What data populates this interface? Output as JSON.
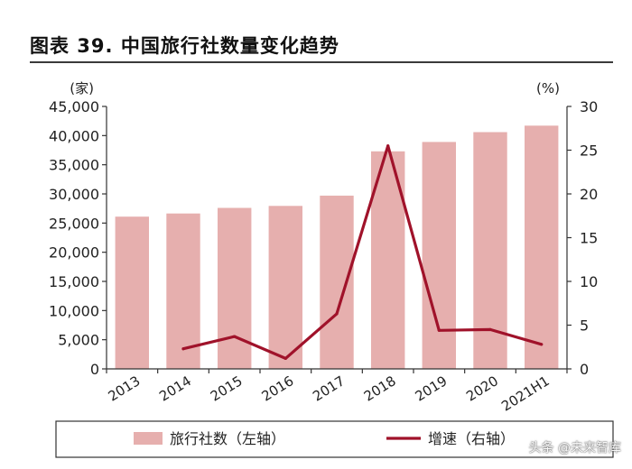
{
  "header": {
    "title": "图表 39. 中国旅行社数量变化趋势"
  },
  "chart_data": {
    "type": "bar",
    "categories": [
      "2013",
      "2014",
      "2015",
      "2016",
      "2017",
      "2018",
      "2019",
      "2020",
      "2021H1"
    ],
    "series": [
      {
        "name": "旅行社数（左轴）",
        "type": "bar",
        "axis": "left",
        "color": "#E6AFAE",
        "values": [
          26100,
          26650,
          27600,
          27950,
          29700,
          37300,
          38900,
          40600,
          41700
        ]
      },
      {
        "name": "增速（右轴）",
        "type": "line",
        "axis": "right",
        "color": "#A0122A",
        "values": [
          null,
          2.3,
          3.7,
          1.2,
          6.3,
          25.5,
          4.4,
          4.5,
          2.8
        ]
      }
    ],
    "y_left": {
      "unit": "(家)",
      "ylim": [
        0,
        45000
      ],
      "ticks": [
        "0",
        "5,000",
        "10,000",
        "15,000",
        "20,000",
        "25,000",
        "30,000",
        "35,000",
        "40,000",
        "45,000"
      ]
    },
    "y_right": {
      "unit": "(%)",
      "ylim": [
        0,
        30
      ],
      "ticks": [
        "0",
        "5",
        "10",
        "15",
        "20",
        "25",
        "30"
      ]
    },
    "grid": false,
    "legend": "bottom"
  },
  "watermark": "头条 @未来智库"
}
